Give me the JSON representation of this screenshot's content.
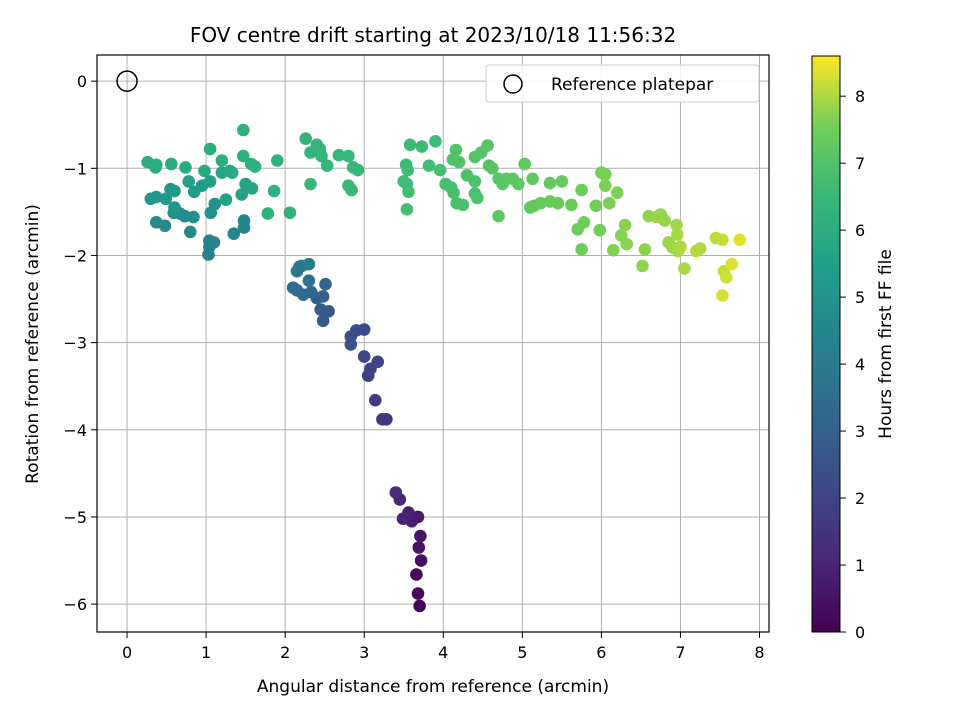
{
  "chart_data": {
    "type": "scatter",
    "title": "FOV centre drift starting at 2023/10/18 11:56:32",
    "xlabel": "Angular distance from reference (arcmin)",
    "ylabel": "Rotation from reference (arcmin)",
    "colorbar_label": "Hours from first FF file",
    "colormap": "viridis",
    "xlim": [
      -0.38,
      8.12
    ],
    "ylim": [
      -6.32,
      0.3
    ],
    "clim": [
      0,
      8.6
    ],
    "x_ticks": [
      "0",
      "1",
      "2",
      "3",
      "4",
      "5",
      "6",
      "7",
      "8"
    ],
    "y_ticks": [
      "0",
      "−1",
      "−2",
      "−3",
      "−4",
      "−5",
      "−6"
    ],
    "colorbar_ticks": [
      "0",
      "1",
      "2",
      "3",
      "4",
      "5",
      "6",
      "7",
      "8"
    ],
    "grid": true,
    "legend": {
      "label": "Reference platepar",
      "position": "top-right"
    },
    "reference": {
      "x": 0,
      "y": 0
    },
    "series": [
      {
        "points": [
          [
            3.7,
            -6.02,
            0.1
          ],
          [
            3.68,
            -5.88,
            0.2
          ],
          [
            3.66,
            -5.66,
            0.3
          ],
          [
            3.72,
            -5.5,
            0.4
          ],
          [
            3.69,
            -5.35,
            0.5
          ],
          [
            3.71,
            -5.22,
            0.6
          ],
          [
            3.68,
            -5.0,
            0.7
          ],
          [
            3.6,
            -5.05,
            0.8
          ],
          [
            3.56,
            -4.95,
            0.9
          ],
          [
            3.49,
            -5.02,
            1.0
          ],
          [
            3.45,
            -4.8,
            1.1
          ],
          [
            3.4,
            -4.72,
            1.2
          ],
          [
            3.28,
            -3.88,
            1.5
          ],
          [
            3.23,
            -3.88,
            1.6
          ],
          [
            3.14,
            -3.66,
            1.7
          ],
          [
            3.05,
            -3.38,
            1.8
          ],
          [
            3.08,
            -3.3,
            1.9
          ],
          [
            3.17,
            -3.22,
            2.0
          ],
          [
            3.0,
            -3.16,
            2.1
          ],
          [
            3.0,
            -2.85,
            2.2
          ],
          [
            2.9,
            -2.86,
            2.3
          ],
          [
            2.83,
            -2.93,
            2.4
          ],
          [
            2.83,
            -3.02,
            2.5
          ],
          [
            2.55,
            -2.64,
            2.6
          ],
          [
            2.48,
            -2.75,
            2.7
          ],
          [
            2.45,
            -2.62,
            2.8
          ],
          [
            2.4,
            -2.49,
            2.9
          ],
          [
            2.48,
            -2.47,
            3.0
          ],
          [
            2.51,
            -2.33,
            3.1
          ],
          [
            2.33,
            -2.42,
            3.2
          ],
          [
            2.23,
            -2.45,
            3.3
          ],
          [
            2.15,
            -2.4,
            3.4
          ],
          [
            2.1,
            -2.37,
            3.5
          ],
          [
            2.3,
            -2.29,
            3.6
          ],
          [
            2.18,
            -2.13,
            3.7
          ],
          [
            2.15,
            -2.18,
            3.8
          ],
          [
            2.21,
            -2.12,
            3.9
          ],
          [
            2.3,
            -2.1,
            4.0
          ],
          [
            1.03,
            -1.99,
            4.2
          ],
          [
            1.04,
            -1.9,
            4.25
          ],
          [
            1.04,
            -1.83,
            4.3
          ],
          [
            1.1,
            -1.85,
            4.35
          ],
          [
            1.35,
            -1.75,
            4.4
          ],
          [
            1.48,
            -1.68,
            4.45
          ],
          [
            1.48,
            -1.6,
            4.5
          ],
          [
            0.8,
            -1.73,
            4.55
          ],
          [
            0.48,
            -1.66,
            4.6
          ],
          [
            0.37,
            -1.62,
            4.65
          ],
          [
            0.73,
            -1.55,
            4.7
          ],
          [
            0.84,
            -1.56,
            4.75
          ],
          [
            0.67,
            -1.52,
            4.8
          ],
          [
            0.59,
            -1.51,
            4.85
          ],
          [
            1.06,
            -1.51,
            4.9
          ],
          [
            1.11,
            -1.41,
            4.95
          ],
          [
            0.6,
            -1.45,
            5.0
          ],
          [
            0.3,
            -1.35,
            5.05
          ],
          [
            0.37,
            -1.33,
            5.1
          ],
          [
            0.49,
            -1.35,
            5.15
          ],
          [
            0.55,
            -1.24,
            5.2
          ],
          [
            0.6,
            -1.26,
            5.25
          ],
          [
            0.85,
            -1.27,
            5.3
          ],
          [
            0.95,
            -1.2,
            5.35
          ],
          [
            0.78,
            -1.15,
            5.4
          ],
          [
            1.05,
            -1.15,
            5.45
          ],
          [
            1.25,
            -1.36,
            5.5
          ],
          [
            1.45,
            -1.3,
            5.55
          ],
          [
            1.5,
            -1.18,
            5.6
          ],
          [
            1.58,
            -1.23,
            5.65
          ],
          [
            1.2,
            -1.05,
            5.7
          ],
          [
            1.3,
            -1.03,
            5.75
          ],
          [
            1.33,
            -1.05,
            5.8
          ],
          [
            0.98,
            -1.03,
            5.85
          ],
          [
            0.74,
            -0.99,
            5.9
          ],
          [
            0.56,
            -0.95,
            5.95
          ],
          [
            0.37,
            -0.96,
            6.0
          ],
          [
            0.36,
            -0.99,
            6.02
          ],
          [
            0.26,
            -0.93,
            6.04
          ],
          [
            1.05,
            -0.78,
            6.06
          ],
          [
            1.2,
            -0.91,
            6.08
          ],
          [
            1.47,
            -0.86,
            6.1
          ],
          [
            1.57,
            -0.95,
            6.12
          ],
          [
            1.62,
            -0.98,
            6.14
          ],
          [
            1.47,
            -0.56,
            6.16
          ],
          [
            1.9,
            -0.91,
            6.18
          ],
          [
            1.86,
            -1.26,
            6.2
          ],
          [
            1.78,
            -1.52,
            6.22
          ],
          [
            2.06,
            -1.51,
            6.24
          ]
        ]
      },
      {
        "points": [
          [
            2.26,
            -0.66,
            6.3
          ],
          [
            2.32,
            -0.82,
            6.32
          ],
          [
            2.4,
            -0.73,
            6.34
          ],
          [
            2.44,
            -0.78,
            6.36
          ],
          [
            2.46,
            -0.86,
            6.38
          ],
          [
            2.53,
            -0.97,
            6.4
          ],
          [
            2.68,
            -0.85,
            6.42
          ],
          [
            2.8,
            -0.86,
            6.44
          ],
          [
            2.86,
            -0.99,
            6.46
          ],
          [
            2.92,
            -1.02,
            6.48
          ],
          [
            2.32,
            -1.18,
            6.5
          ],
          [
            2.8,
            -1.2,
            6.52
          ],
          [
            2.84,
            -1.25,
            6.54
          ],
          [
            3.53,
            -0.96,
            6.56
          ],
          [
            3.58,
            -0.73,
            6.58
          ],
          [
            3.73,
            -0.75,
            6.6
          ],
          [
            3.9,
            -0.69,
            6.62
          ],
          [
            3.55,
            -1.02,
            6.64
          ],
          [
            3.5,
            -1.15,
            6.66
          ],
          [
            3.54,
            -1.18,
            6.68
          ],
          [
            3.56,
            -1.27,
            6.7
          ],
          [
            3.54,
            -1.47,
            6.72
          ],
          [
            3.82,
            -0.97,
            6.74
          ],
          [
            3.96,
            -1.02,
            6.76
          ],
          [
            4.03,
            -1.18,
            6.78
          ],
          [
            4.1,
            -1.22,
            6.8
          ],
          [
            4.13,
            -1.28,
            6.82
          ],
          [
            4.17,
            -1.4,
            6.84
          ],
          [
            4.25,
            -1.42,
            6.86
          ],
          [
            4.4,
            -1.29,
            6.88
          ],
          [
            4.43,
            -1.34,
            6.9
          ],
          [
            4.4,
            -1.15,
            6.92
          ],
          [
            4.3,
            -1.08,
            6.94
          ],
          [
            4.2,
            -0.93,
            6.96
          ],
          [
            4.12,
            -0.9,
            6.98
          ],
          [
            4.16,
            -0.79,
            7.0
          ],
          [
            4.4,
            -0.87,
            7.02
          ],
          [
            4.48,
            -0.82,
            7.04
          ],
          [
            4.56,
            -0.74,
            7.06
          ],
          [
            4.58,
            -0.97,
            7.08
          ],
          [
            4.62,
            -1.0,
            7.1
          ],
          [
            4.7,
            -1.12,
            7.12
          ],
          [
            4.75,
            -1.18,
            7.14
          ],
          [
            4.8,
            -1.12,
            7.16
          ],
          [
            4.88,
            -1.12,
            7.18
          ],
          [
            4.95,
            -1.18,
            7.2
          ],
          [
            4.7,
            -1.55,
            7.22
          ],
          [
            5.03,
            -0.95,
            7.24
          ],
          [
            5.13,
            -1.12,
            7.26
          ],
          [
            5.1,
            -1.45,
            7.28
          ],
          [
            5.15,
            -1.43,
            7.3
          ],
          [
            5.23,
            -1.4,
            7.32
          ],
          [
            5.35,
            -1.38,
            7.34
          ],
          [
            5.35,
            -1.17,
            7.36
          ],
          [
            5.5,
            -1.15,
            7.38
          ],
          [
            5.45,
            -1.4,
            7.4
          ],
          [
            5.62,
            -1.42,
            7.42
          ],
          [
            5.75,
            -1.25,
            7.44
          ],
          [
            5.7,
            -1.7,
            7.46
          ],
          [
            5.78,
            -1.62,
            7.48
          ],
          [
            5.75,
            -1.93,
            7.5
          ],
          [
            5.93,
            -1.43,
            7.52
          ],
          [
            5.98,
            -1.71,
            7.54
          ],
          [
            6.0,
            -1.05,
            7.56
          ],
          [
            6.05,
            -1.07,
            7.58
          ],
          [
            6.05,
            -1.2,
            7.6
          ],
          [
            6.1,
            -1.4,
            7.62
          ],
          [
            6.2,
            -1.28,
            7.64
          ],
          [
            6.15,
            -1.94,
            7.66
          ],
          [
            6.25,
            -1.77,
            7.68
          ],
          [
            6.3,
            -1.65,
            7.7
          ],
          [
            6.32,
            -1.87,
            7.72
          ],
          [
            6.55,
            -1.93,
            7.74
          ],
          [
            6.52,
            -2.12,
            7.76
          ],
          [
            6.6,
            -1.55,
            7.78
          ],
          [
            6.7,
            -1.56,
            7.8
          ],
          [
            6.75,
            -1.53,
            7.82
          ],
          [
            6.8,
            -1.6,
            7.84
          ],
          [
            6.85,
            -1.85,
            7.86
          ],
          [
            6.9,
            -1.91,
            7.88
          ],
          [
            6.95,
            -1.65,
            7.9
          ],
          [
            6.97,
            -1.95,
            7.92
          ],
          [
            6.96,
            -1.76,
            7.94
          ],
          [
            7.05,
            -2.15,
            7.96
          ],
          [
            7.0,
            -1.9,
            7.98
          ],
          [
            7.25,
            -1.92,
            8.0
          ],
          [
            7.2,
            -1.95,
            8.05
          ],
          [
            7.45,
            -1.8,
            8.1
          ],
          [
            7.53,
            -1.82,
            8.15
          ],
          [
            7.55,
            -2.18,
            8.2
          ],
          [
            7.58,
            -2.25,
            8.25
          ],
          [
            7.53,
            -2.46,
            8.3
          ],
          [
            7.65,
            -2.1,
            8.35
          ],
          [
            7.75,
            -1.82,
            8.4
          ]
        ]
      }
    ]
  }
}
